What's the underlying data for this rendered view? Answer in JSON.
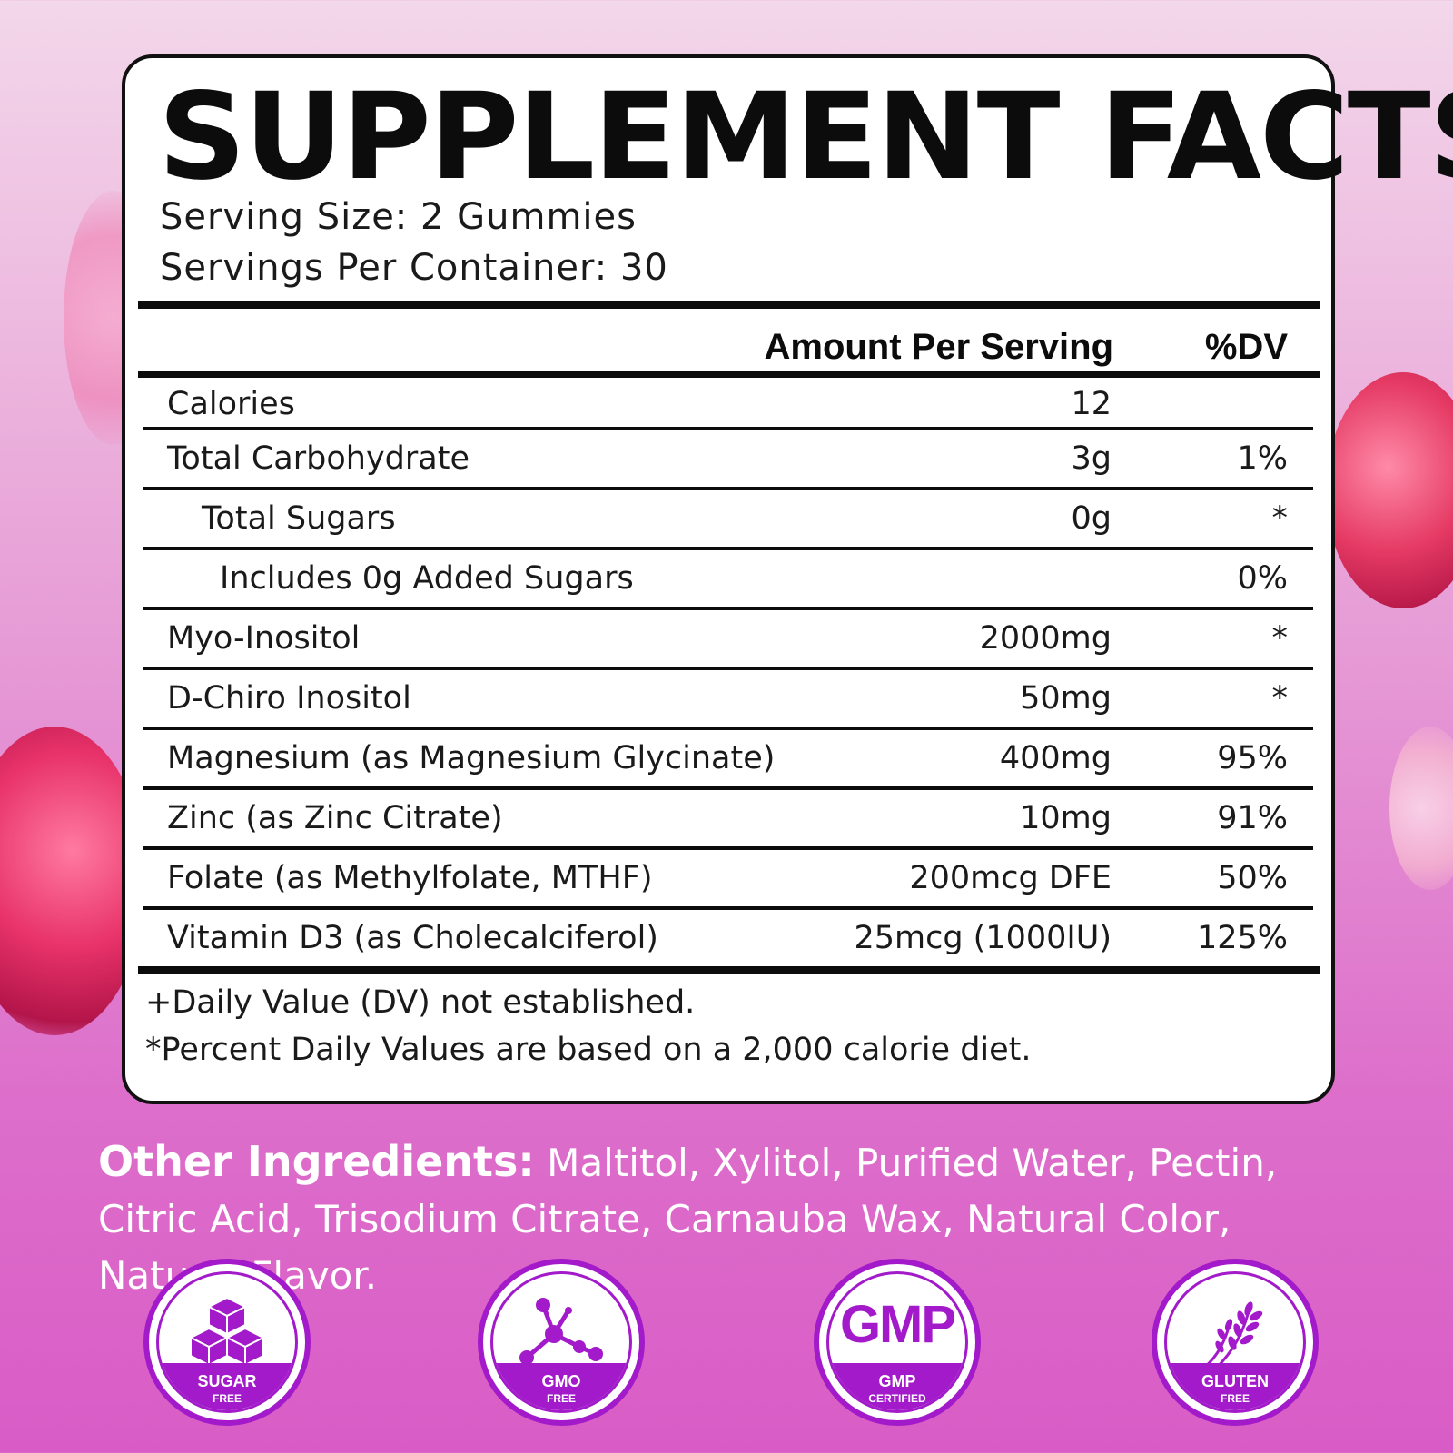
{
  "title": "SUPPLEMENT FACTS",
  "serving_size": "Serving Size: 2 Gummies",
  "servings_per_container": "Servings Per Container: 30",
  "header": {
    "amount": "Amount Per Serving",
    "dv": "%DV"
  },
  "rows": [
    {
      "name": "Calories",
      "amount": "12",
      "dv": ""
    },
    {
      "name": "Total Carbohydrate",
      "amount": "3g",
      "dv": "1%"
    },
    {
      "name": "Total Sugars",
      "amount": "0g",
      "dv": "*"
    },
    {
      "name": "Includes 0g Added Sugars",
      "amount": "",
      "dv": "0%"
    },
    {
      "name": "Myo-Inositol",
      "amount": "2000mg",
      "dv": "*"
    },
    {
      "name": "D-Chiro Inositol",
      "amount": "50mg",
      "dv": "*"
    },
    {
      "name": "Magnesium (as Magnesium Glycinate)",
      "amount": "400mg",
      "dv": "95%"
    },
    {
      "name": "Zinc (as Zinc Citrate)",
      "amount": "10mg",
      "dv": "91%"
    },
    {
      "name": "Folate (as Methylfolate, MTHF)",
      "amount": "200mcg DFE",
      "dv": "50%"
    },
    {
      "name": "Vitamin D3 (as Cholecalciferol)",
      "amount": "25mcg (1000IU)",
      "dv": "125%"
    }
  ],
  "footnotes": [
    "+Daily Value (DV) not established.",
    "*Percent Daily Values are based on a 2,000 calorie diet."
  ],
  "other_ingredients": {
    "label": "Other Ingredients:",
    "text": " Maltitol, Xylitol, Purified Water, Pectin, Citric Acid, Trisodium Citrate, Carnauba Wax, Natural Color, Natural Flavor."
  },
  "badges": [
    {
      "icon": "sugar-cubes-icon",
      "line1": "SUGAR",
      "line2": "FREE"
    },
    {
      "icon": "molecule-icon",
      "line1": "GMO",
      "line2": "FREE"
    },
    {
      "icon": "gmp-mark",
      "mark": "GMP",
      "line1": "GMP",
      "line2": "CERTIFIED"
    },
    {
      "icon": "wheat-icon",
      "line1": "GLUTEN",
      "line2": "FREE"
    }
  ],
  "colors": {
    "accent": "#a21ac9",
    "ink": "#0c0c0c",
    "panel": "#ffffff"
  }
}
